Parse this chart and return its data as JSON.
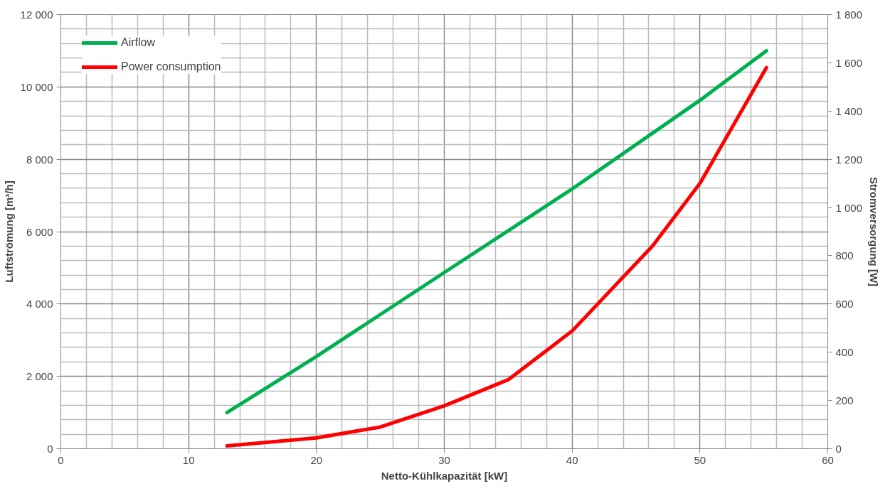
{
  "chart_data": {
    "type": "line",
    "xlabel": "Netto-Kühlkapazität [kW]",
    "ylabel": "Luftströmung [m³/h]",
    "y2label": "Stromversorgung [W]",
    "series": [
      {
        "name": "Airflow",
        "color": "#00b050",
        "x": [
          13,
          20,
          30,
          40,
          50,
          55.2
        ],
        "values": [
          1000,
          2550,
          4870,
          7180,
          9630,
          11000
        ]
      },
      {
        "name": "Power consumption",
        "color": "#ff0000",
        "axis": "y2",
        "x": [
          13,
          20,
          25,
          30,
          35,
          40,
          46.3,
          50,
          55.2
        ],
        "values": [
          12,
          45,
          90,
          178,
          286,
          488,
          841,
          1100,
          1580
        ]
      }
    ],
    "xlim": [
      0,
      60
    ],
    "xticks": [
      0,
      10,
      20,
      30,
      40,
      50,
      60
    ],
    "ylim": [
      0,
      12000
    ],
    "yticks": [
      0,
      {
        "value": 2000,
        "label": "2 000"
      },
      {
        "value": 4000,
        "label": "4 000"
      },
      {
        "value": 6000,
        "label": "6 000"
      },
      {
        "value": 8000,
        "label": "8 000"
      },
      {
        "value": 10000,
        "label": "10 000"
      },
      {
        "value": 12000,
        "label": "12 000"
      }
    ],
    "y2lim": [
      0,
      1800
    ],
    "y2ticks": [
      0,
      200,
      400,
      600,
      800,
      {
        "value": 1000,
        "label": "1 000"
      },
      {
        "value": 1200,
        "label": "1 200"
      },
      {
        "value": 1400,
        "label": "1 400"
      },
      {
        "value": 1600,
        "label": "1 600"
      },
      {
        "value": 1800,
        "label": "1 800"
      }
    ],
    "grid": true,
    "legend": "top left",
    "line_style": "solid"
  }
}
